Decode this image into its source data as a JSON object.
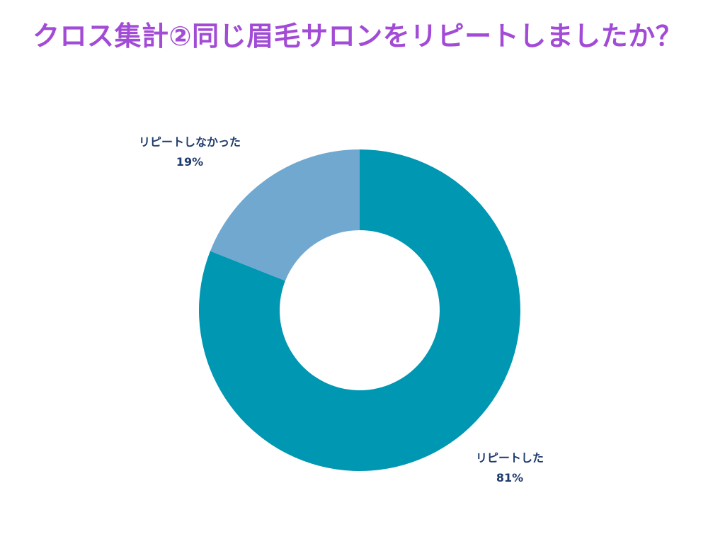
{
  "title": "クロス集計②同じ眉毛サロンをリピートしましたか？",
  "chart_data": {
    "type": "pie",
    "style": "donut",
    "title": "クロス集計②同じ眉毛サロンをリピートしましたか？",
    "categories": [
      "リピートした",
      "リピートしなかった"
    ],
    "values": [
      81,
      19
    ],
    "value_labels": [
      "81%",
      "19%"
    ],
    "colors": [
      "#0097b2",
      "#70a8d0"
    ],
    "legend": "none",
    "start_angle_deg": 0,
    "direction": "clockwise"
  },
  "labels": {
    "repeated": {
      "name": "リピートした",
      "value": "81%"
    },
    "not_repeated": {
      "name": "リピートしなかった",
      "value": "19%"
    }
  }
}
